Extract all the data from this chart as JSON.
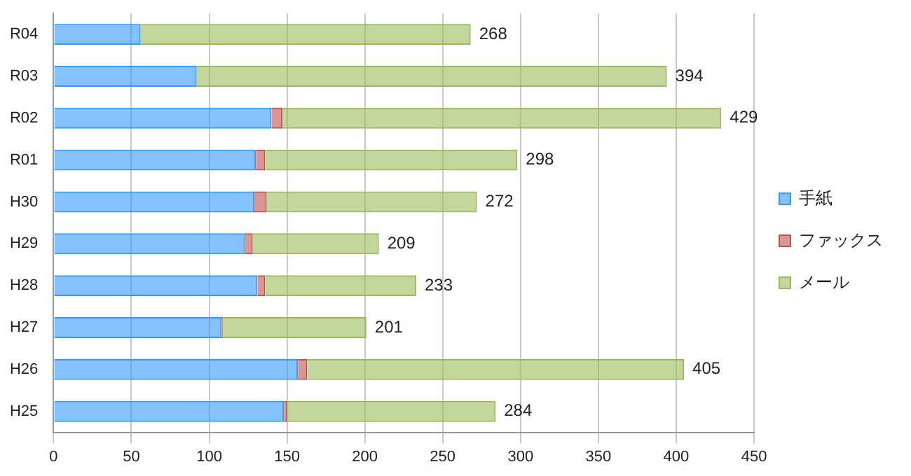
{
  "chart_data": {
    "type": "bar",
    "orientation": "horizontal",
    "stacked": true,
    "categories": [
      "R04",
      "R03",
      "R02",
      "R01",
      "H30",
      "H29",
      "H28",
      "H27",
      "H26",
      "H25"
    ],
    "series": [
      {
        "name": "手紙",
        "color": "#3399ff",
        "values": [
          56,
          92,
          140,
          130,
          129,
          123,
          131,
          108,
          157,
          148
        ]
      },
      {
        "name": "ファックス",
        "color": "#c0504d",
        "values": [
          0,
          0,
          7,
          6,
          8,
          5,
          5,
          1,
          6,
          2
        ]
      },
      {
        "name": "メール",
        "color": "#9bbb59",
        "values": [
          212,
          302,
          282,
          162,
          135,
          81,
          97,
          92,
          242,
          134
        ]
      }
    ],
    "totals": [
      "268",
      "394",
      "429",
      "298",
      "272",
      "209",
      "233",
      "201",
      "405",
      "284"
    ],
    "xlim": [
      0,
      450
    ],
    "xticks": [
      0,
      50,
      100,
      150,
      200,
      250,
      300,
      350,
      400,
      450
    ],
    "grid": "x",
    "legend": "right"
  }
}
